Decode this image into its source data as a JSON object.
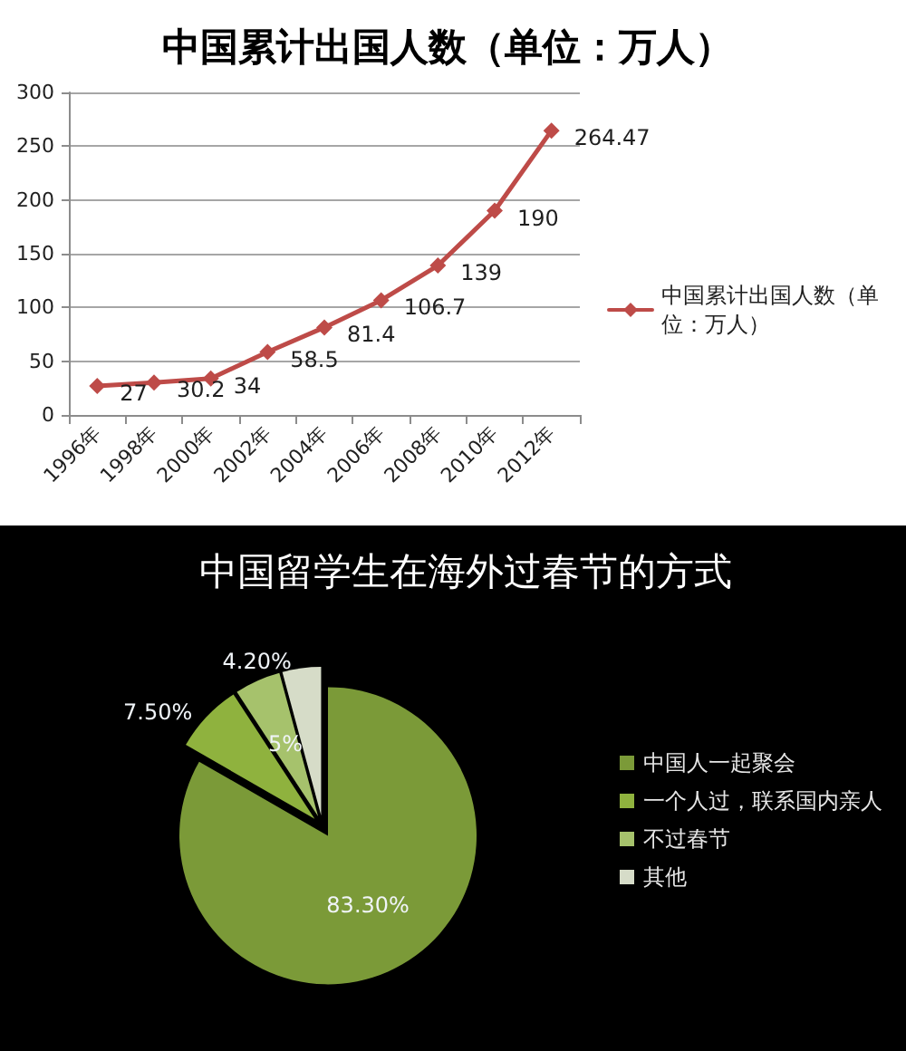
{
  "chart_data": [
    {
      "type": "line",
      "title": "中国累计出国人数（单位：万人）",
      "categories": [
        "1996年",
        "1998年",
        "2000年",
        "2002年",
        "2004年",
        "2006年",
        "2008年",
        "2010年",
        "2012年"
      ],
      "series": [
        {
          "name": "中国累计出国人数（单位：万人）",
          "color": "#be4b48",
          "values": [
            27,
            30.2,
            34,
            58.5,
            81.4,
            106.7,
            139,
            190,
            264.47
          ]
        }
      ],
      "ylim": [
        0,
        300
      ],
      "yticks": [
        0,
        50,
        100,
        150,
        200,
        250,
        300
      ],
      "grid": "y",
      "legend": "right",
      "marker": "diamond",
      "data_labels": true
    },
    {
      "type": "pie",
      "title": "中国留学生在海外过春节的方式",
      "categories": [
        "中国人一起聚会",
        "一个人过，联系国内亲人",
        "不过春节",
        "其他"
      ],
      "values": [
        83.3,
        7.5,
        5,
        4.2
      ],
      "colors": [
        "#7b9a38",
        "#8fb23e",
        "#a6c26c",
        "#d6dcc8"
      ],
      "value_labels": [
        "83.30%",
        "7.50%",
        "5%",
        "4.20%"
      ],
      "legend": "right"
    }
  ]
}
